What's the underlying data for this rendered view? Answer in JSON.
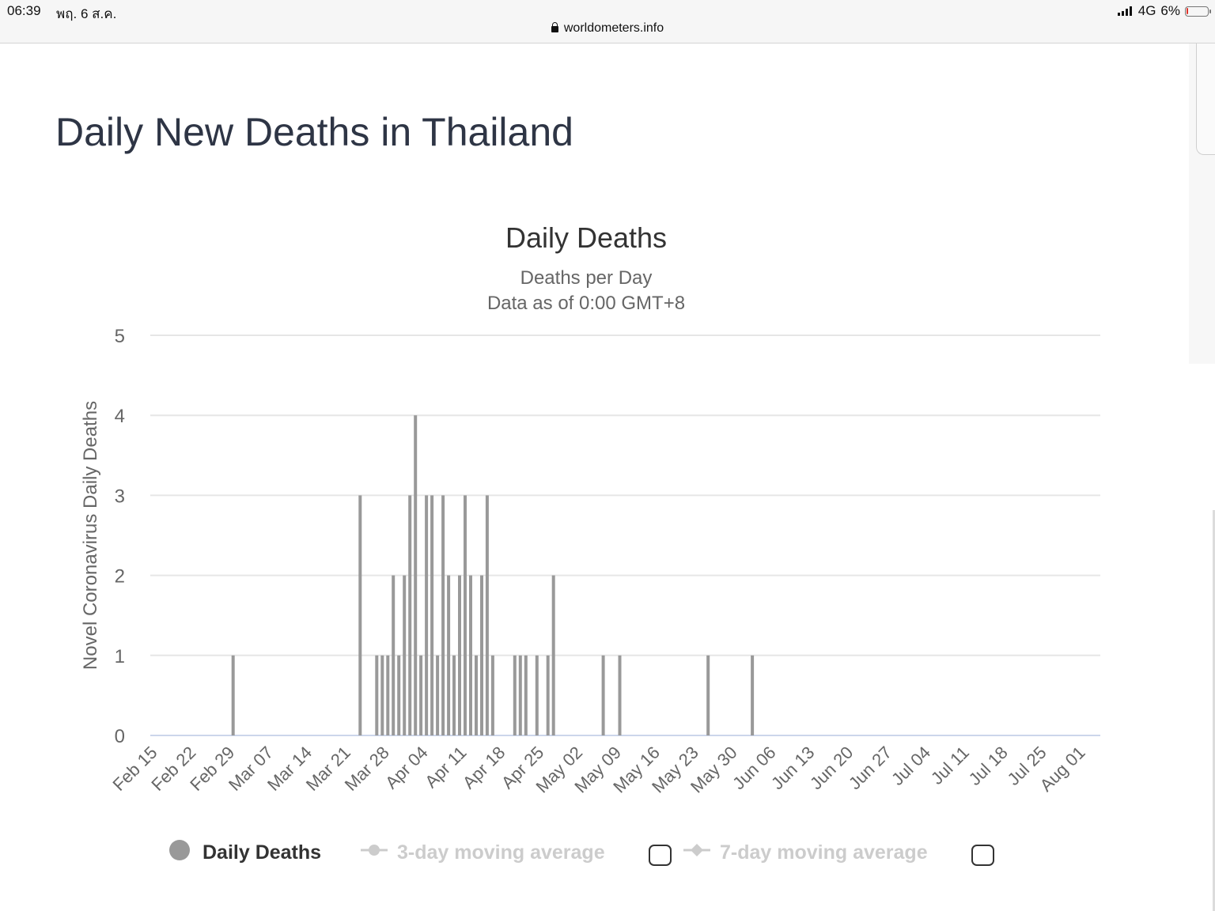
{
  "status_bar": {
    "time": "06:39",
    "date": "พฤ. 6 ส.ค.",
    "network": "4G",
    "battery": "6%",
    "battery_level": 0.06
  },
  "browser": {
    "url": "worldometers.info"
  },
  "page": {
    "title": "Daily New Deaths in Thailand"
  },
  "legend": {
    "items": [
      {
        "label": "Daily Deaths",
        "active": true,
        "color": "#999999"
      },
      {
        "label": "3-day moving average",
        "active": false,
        "color": "#cccccc"
      },
      {
        "label": "7-day moving average",
        "active": false,
        "color": "#cccccc"
      }
    ]
  },
  "chart_data": {
    "type": "bar",
    "title": "Daily Deaths",
    "subtitle": [
      "Deaths per Day",
      "Data as of 0:00 GMT+8"
    ],
    "ylabel": "Novel Coronavirus Daily Deaths",
    "xlabel": "",
    "ylim": [
      0,
      5
    ],
    "yticks": [
      0,
      1,
      2,
      3,
      4,
      5
    ],
    "x_start": "Feb 15",
    "x_end": "Aug 05",
    "categories": [
      "Feb 15",
      "Feb 22",
      "Feb 29",
      "Mar 07",
      "Mar 14",
      "Mar 21",
      "Mar 28",
      "Apr 04",
      "Apr 11",
      "Apr 18",
      "Apr 25",
      "May 02",
      "May 09",
      "May 16",
      "May 23",
      "May 30",
      "Jun 06",
      "Jun 13",
      "Jun 20",
      "Jun 27",
      "Jul 04",
      "Jul 11",
      "Jul 18",
      "Jul 25",
      "Aug 01"
    ],
    "grid": true,
    "bar_color": "#999999",
    "series": [
      {
        "name": "Daily Deaths",
        "points": [
          {
            "x": "Mar 01",
            "y": 1
          },
          {
            "x": "Mar 24",
            "y": 3
          },
          {
            "x": "Mar 27",
            "y": 1
          },
          {
            "x": "Mar 28",
            "y": 1
          },
          {
            "x": "Mar 29",
            "y": 1
          },
          {
            "x": "Mar 30",
            "y": 2
          },
          {
            "x": "Mar 31",
            "y": 1
          },
          {
            "x": "Apr 01",
            "y": 2
          },
          {
            "x": "Apr 02",
            "y": 3
          },
          {
            "x": "Apr 03",
            "y": 4
          },
          {
            "x": "Apr 04",
            "y": 1
          },
          {
            "x": "Apr 05",
            "y": 3
          },
          {
            "x": "Apr 06",
            "y": 3
          },
          {
            "x": "Apr 07",
            "y": 1
          },
          {
            "x": "Apr 08",
            "y": 3
          },
          {
            "x": "Apr 09",
            "y": 2
          },
          {
            "x": "Apr 10",
            "y": 1
          },
          {
            "x": "Apr 11",
            "y": 2
          },
          {
            "x": "Apr 12",
            "y": 3
          },
          {
            "x": "Apr 13",
            "y": 2
          },
          {
            "x": "Apr 14",
            "y": 1
          },
          {
            "x": "Apr 15",
            "y": 2
          },
          {
            "x": "Apr 16",
            "y": 3
          },
          {
            "x": "Apr 17",
            "y": 1
          },
          {
            "x": "Apr 21",
            "y": 1
          },
          {
            "x": "Apr 22",
            "y": 1
          },
          {
            "x": "Apr 23",
            "y": 1
          },
          {
            "x": "Apr 25",
            "y": 1
          },
          {
            "x": "Apr 27",
            "y": 1
          },
          {
            "x": "Apr 28",
            "y": 2
          },
          {
            "x": "May 07",
            "y": 1
          },
          {
            "x": "May 10",
            "y": 1
          },
          {
            "x": "May 26",
            "y": 1
          },
          {
            "x": "Jun 03",
            "y": 1
          }
        ]
      }
    ]
  }
}
